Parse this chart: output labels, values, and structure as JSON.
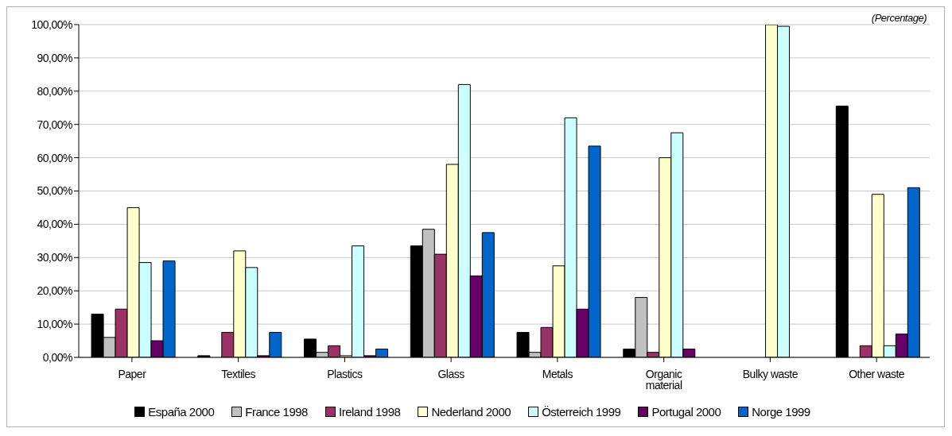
{
  "chart_data": {
    "type": "bar",
    "annotations": [
      "(Percentage)"
    ],
    "categories": [
      "Paper",
      "Textiles",
      "Plastics",
      "Glass",
      "Metals",
      "Organic material",
      "Bulky waste",
      "Other waste"
    ],
    "series": [
      {
        "name": "España 2000",
        "color": "#000000",
        "values": [
          13,
          0.5,
          5.5,
          33.5,
          7.5,
          2.5,
          0,
          75.5
        ]
      },
      {
        "name": "France 1998",
        "color": "#c0c0c0",
        "values": [
          6,
          0,
          1.5,
          38.5,
          1.5,
          18,
          0,
          0
        ]
      },
      {
        "name": "Ireland 1998",
        "color": "#993366",
        "values": [
          14.5,
          7.5,
          3.5,
          31,
          9,
          1.5,
          0,
          3.5
        ]
      },
      {
        "name": "Nederland 2000",
        "color": "#ffffcc",
        "values": [
          45,
          32,
          0.5,
          58,
          27.5,
          60,
          100,
          49
        ]
      },
      {
        "name": "Österreich 1999",
        "color": "#ccffff",
        "values": [
          28.5,
          27,
          33.5,
          82,
          72,
          67.5,
          99.5,
          3.5
        ]
      },
      {
        "name": "Portugal 2000",
        "color": "#660066",
        "values": [
          5,
          0.5,
          0.5,
          24.5,
          14.5,
          2.5,
          0,
          7
        ]
      },
      {
        "name": "Norge 1999",
        "color": "#0066cc",
        "values": [
          29,
          7.5,
          2.5,
          37.5,
          63.5,
          0,
          0,
          51
        ]
      }
    ],
    "ylim": [
      0,
      100
    ],
    "yticks": [
      {
        "value": 0,
        "label": "0,00%"
      },
      {
        "value": 10,
        "label": "10,00%"
      },
      {
        "value": 20,
        "label": "20,00%"
      },
      {
        "value": 30,
        "label": "30,00%"
      },
      {
        "value": 40,
        "label": "40,00%"
      },
      {
        "value": 50,
        "label": "50,00%"
      },
      {
        "value": 60,
        "label": "60,00%"
      },
      {
        "value": 70,
        "label": "70,00%"
      },
      {
        "value": 80,
        "label": "80,00%"
      },
      {
        "value": 90,
        "label": "90,00%"
      },
      {
        "value": 100,
        "label": "100,00%"
      }
    ],
    "grid": "y",
    "legend": "bottom"
  }
}
